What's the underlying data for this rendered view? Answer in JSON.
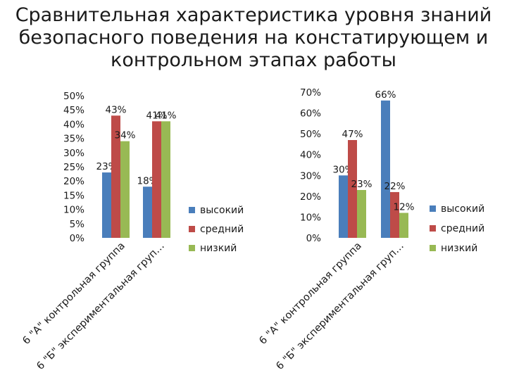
{
  "title_lines": [
    "Сравнительная характеристика уровня знаний",
    "безопасного поведения на констатирующем и",
    "контрольном этапах работы"
  ],
  "colors": {
    "высокий": "#4a7ebb",
    "средний": "#be4b48",
    "низкий": "#98b954"
  },
  "chart_data": [
    {
      "type": "bar",
      "categories": [
        "6 \"А\" контрольная группа",
        "6 \"Б\" экспериментальная груп…"
      ],
      "series": [
        {
          "name": "высокий",
          "values": [
            23,
            18
          ],
          "labels": [
            "23%",
            "18%"
          ]
        },
        {
          "name": "средний",
          "values": [
            43,
            41
          ],
          "labels": [
            "43%",
            "41%"
          ]
        },
        {
          "name": "низкий",
          "values": [
            34,
            41
          ],
          "labels": [
            "34%",
            "41%"
          ]
        }
      ],
      "ylim": [
        0,
        50
      ],
      "yticks": [
        "0%",
        "5%",
        "10%",
        "15%",
        "20%",
        "25%",
        "30%",
        "35%",
        "40%",
        "45%",
        "50%"
      ],
      "grid": false,
      "legend": "right"
    },
    {
      "type": "bar",
      "categories": [
        "6 \"А\" контрольная группа",
        "6 \"Б\" экспериментальная груп…"
      ],
      "series": [
        {
          "name": "высокий",
          "values": [
            30,
            66
          ],
          "labels": [
            "30%",
            "66%"
          ]
        },
        {
          "name": "средний",
          "values": [
            47,
            22
          ],
          "labels": [
            "47%",
            "22%"
          ]
        },
        {
          "name": "низкий",
          "values": [
            23,
            12
          ],
          "labels": [
            "23%",
            "12%"
          ]
        }
      ],
      "ylim": [
        0,
        70
      ],
      "yticks": [
        "0%",
        "10%",
        "20%",
        "30%",
        "40%",
        "50%",
        "60%",
        "70%"
      ],
      "grid": false,
      "legend": "right"
    }
  ]
}
